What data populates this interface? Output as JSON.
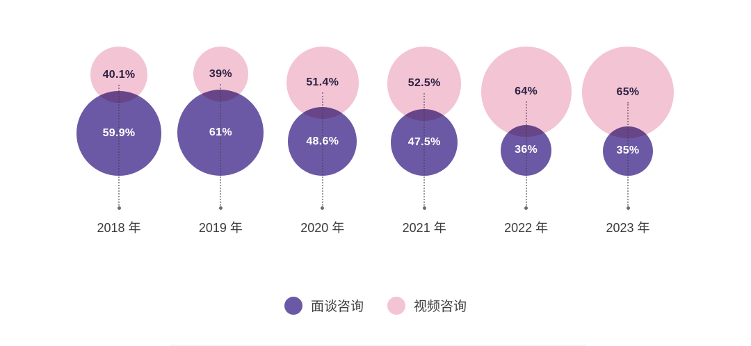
{
  "chart_data": {
    "type": "bubble",
    "title": "",
    "categories": [
      "2018 年",
      "2019 年",
      "2020 年",
      "2021 年",
      "2022 年",
      "2023 年"
    ],
    "series": [
      {
        "name": "面谈咨询",
        "color": "#6C59A5",
        "values": [
          59.9,
          61,
          48.6,
          47.5,
          36,
          35
        ],
        "labels": [
          "59.9%",
          "61%",
          "48.6%",
          "47.5%",
          "36%",
          "35%"
        ]
      },
      {
        "name": "视频咨询",
        "color": "#F3C4D3",
        "values": [
          40.1,
          39,
          51.4,
          52.5,
          64,
          65
        ],
        "labels": [
          "40.1%",
          "39%",
          "51.4%",
          "52.5%",
          "64%",
          "65%"
        ]
      }
    ],
    "value_unit": "%",
    "legend_position": "bottom",
    "notes": "Circle area per year sized by percentage; pink (video) circle on top overlapping purple (in-person) circle; dotted guide line down to year label"
  },
  "colors": {
    "background": "#ffffff",
    "in_person": "#6C59A5",
    "video": "#F3C4D3",
    "dark_value_label": "#2B2144",
    "light_value_label": "#ffffff",
    "year_label": "#3C3C3C"
  }
}
